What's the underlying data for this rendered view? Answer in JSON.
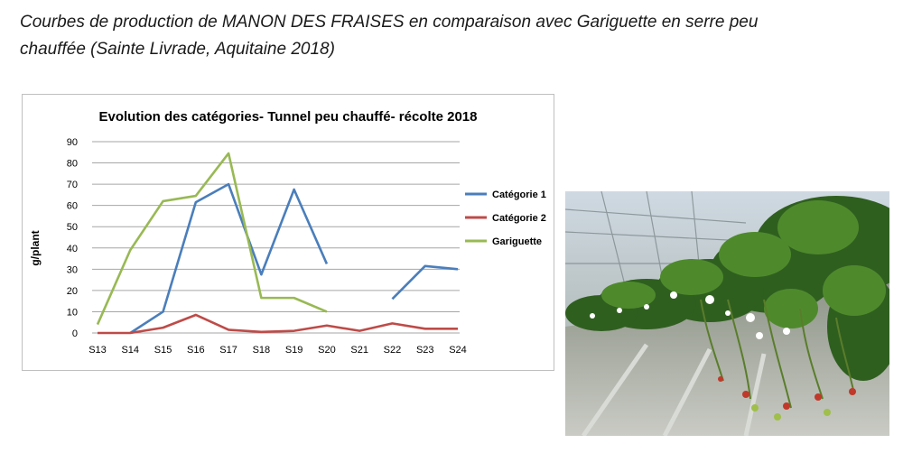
{
  "caption": {
    "line1": "Courbes de production de MANON DES FRAISES en comparaison avec Gariguette en serre peu",
    "line2": "chauffée (Sainte Livrade, Aquitaine 2018)"
  },
  "chart_data": {
    "type": "line",
    "title": "Evolution des catégories- Tunnel peu chauffé- récolte 2018",
    "xlabel": "",
    "ylabel": "g/plant",
    "ylim": [
      0,
      90
    ],
    "yticks": [
      0,
      10,
      20,
      30,
      40,
      50,
      60,
      70,
      80,
      90
    ],
    "grid": "horizontal",
    "legend_position": "right",
    "categories": [
      "S13",
      "S14",
      "S15",
      "S16",
      "S17",
      "S18",
      "S19",
      "S20",
      "S21",
      "S22",
      "S23",
      "S24"
    ],
    "series": [
      {
        "name": "Catégorie 1",
        "color": "#4a7ebb",
        "values": [
          null,
          0,
          10,
          61.5,
          70,
          27.5,
          67.5,
          32.5,
          null,
          16,
          31.5,
          30
        ]
      },
      {
        "name": "Catégorie 2",
        "color": "#be4b48",
        "values": [
          0,
          0,
          2.5,
          8.5,
          1.5,
          0.5,
          1,
          3.5,
          1,
          4.5,
          2,
          2
        ]
      },
      {
        "name": "Gariguette",
        "color": "#98b954",
        "values": [
          4,
          39,
          62,
          64.5,
          84.5,
          16.5,
          16.5,
          10,
          null,
          null,
          null,
          null
        ]
      }
    ]
  },
  "photo": {
    "description_icon": "strawberry-greenhouse-photo"
  }
}
